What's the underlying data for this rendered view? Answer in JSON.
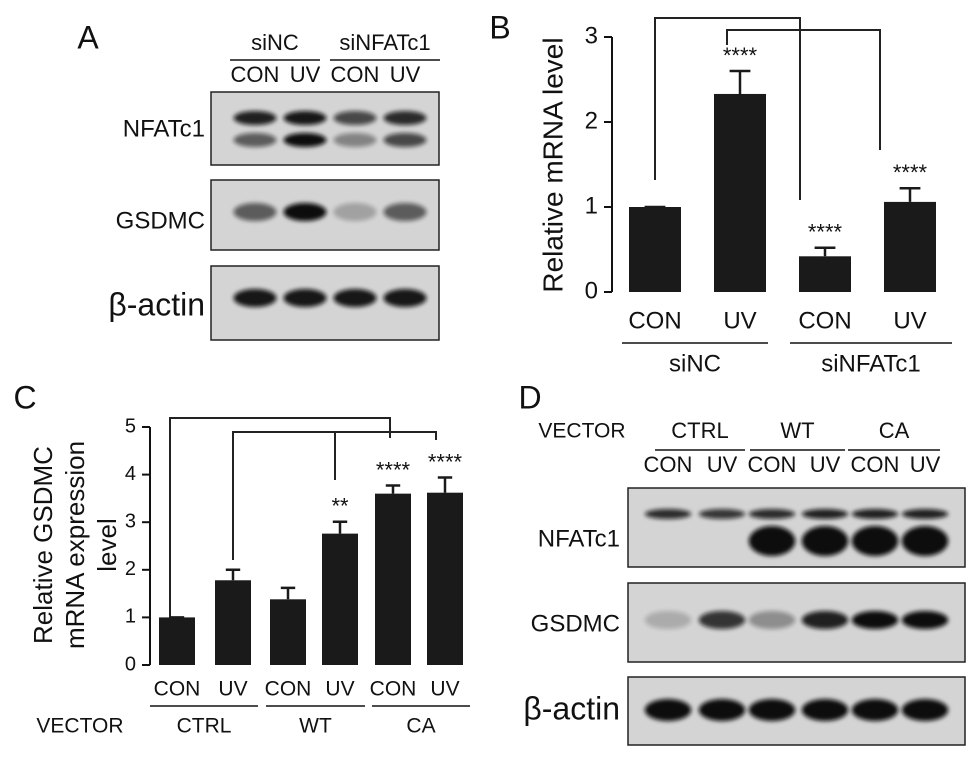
{
  "chart_data": [
    {
      "type": "bar",
      "panel": "B",
      "ylabel": "Relative mRNA level",
      "categories": [
        "CON",
        "UV",
        "CON",
        "UV"
      ],
      "groups": [
        "siNC",
        "siNFATc1"
      ],
      "values": [
        1,
        2.33,
        0.42,
        1.06
      ],
      "errors": [
        0,
        0.27,
        0.1,
        0.16
      ],
      "annotations": [
        null,
        "****",
        "****",
        "****"
      ],
      "color": "#1a1a1a",
      "ylim": [
        0,
        3
      ],
      "yticks": [
        0,
        1,
        2,
        3
      ]
    },
    {
      "type": "bar",
      "panel": "C",
      "ylabel": [
        "Relative GSDMC",
        "mRNA expression",
        "level"
      ],
      "categories": [
        "CON",
        "UV",
        "CON",
        "UV",
        "CON",
        "UV"
      ],
      "group_header": "VECTOR",
      "groups": [
        "CTRL",
        "WT",
        "CA"
      ],
      "values": [
        1,
        1.78,
        1.38,
        2.76,
        3.6,
        3.62
      ],
      "errors": [
        0,
        0.22,
        0.24,
        0.25,
        0.17,
        0.32
      ],
      "annotations": [
        null,
        null,
        null,
        "**",
        "****",
        "****"
      ],
      "color": "#1a1a1a",
      "ylim": [
        0,
        5
      ],
      "yticks": [
        0,
        1,
        2,
        3,
        4,
        5
      ]
    }
  ],
  "blot_a": {
    "panel": "A",
    "groups": [
      "siNC",
      "siNFATc1"
    ],
    "lanes": [
      "CON",
      "UV",
      "CON",
      "UV"
    ],
    "rows": [
      "NFATc1",
      "GSDMC",
      "β-actin"
    ]
  },
  "blot_d": {
    "panel": "D",
    "group_header": "VECTOR",
    "groups": [
      "CTRL",
      "WT",
      "CA"
    ],
    "lanes": [
      "CON",
      "UV",
      "CON",
      "UV",
      "CON",
      "UV"
    ],
    "rows": [
      "NFATc1",
      "GSDMC",
      "β-actin"
    ]
  }
}
